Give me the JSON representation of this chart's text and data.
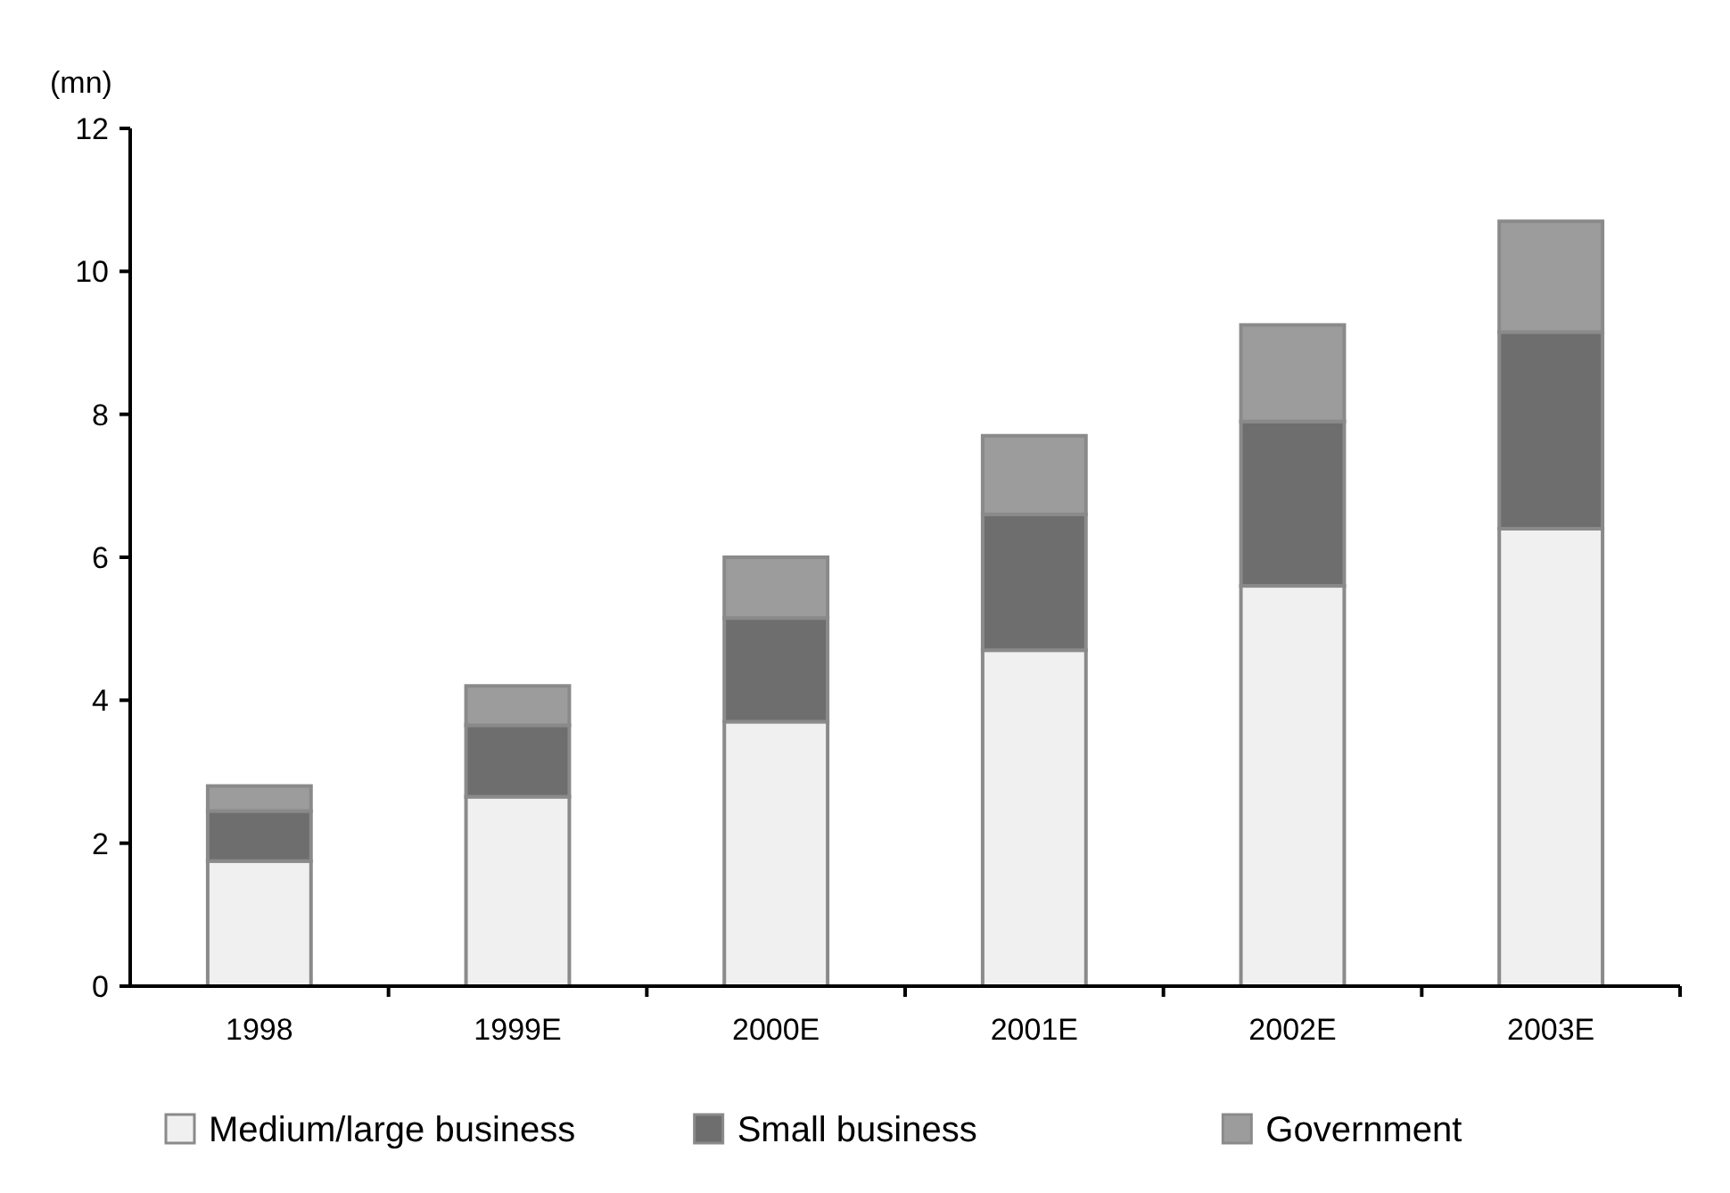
{
  "chart_data": {
    "type": "bar",
    "ylabel": "(mn)",
    "categories": [
      "1998",
      "1999E",
      "2000E",
      "2001E",
      "2002E",
      "2003E"
    ],
    "stacked": true,
    "ylim": [
      0,
      12
    ],
    "yticks": [
      0,
      2,
      4,
      6,
      8,
      10,
      12
    ],
    "grid": false,
    "legend": "bottom",
    "series": [
      {
        "name": "Medium/large business",
        "color": "#f0f0f0",
        "values": [
          1.75,
          2.65,
          3.7,
          4.7,
          5.6,
          6.4
        ]
      },
      {
        "name": "Small business",
        "color": "#6e6e6e",
        "values": [
          0.7,
          1.0,
          1.45,
          1.9,
          2.3,
          2.75
        ]
      },
      {
        "name": "Government",
        "color": "#9c9c9c",
        "values": [
          0.35,
          0.55,
          0.85,
          1.1,
          1.35,
          1.55
        ]
      }
    ]
  }
}
